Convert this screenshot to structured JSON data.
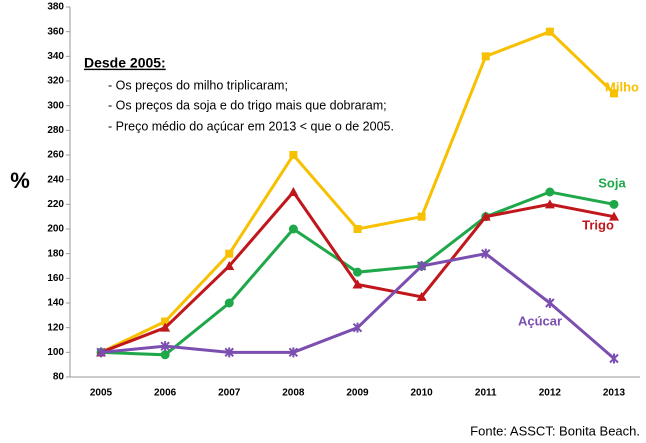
{
  "chart_data": {
    "type": "line",
    "y_label": "%",
    "annotation_title": "Desde 2005:",
    "annotations": [
      "- Os preços do milho triplicaram;",
      "- Os preços da soja e do trigo mais que dobraram;",
      "- Preço médio do açúcar em 2013 < que o de 2005."
    ],
    "source": "Fonte: ASSCT: Bonita Beach.",
    "categories": [
      "2005",
      "2006",
      "2007",
      "2008",
      "2009",
      "2010",
      "2011",
      "2012",
      "2013"
    ],
    "series": [
      {
        "name": "Milho",
        "color": "#f7c000",
        "marker": "square",
        "values": [
          100,
          125,
          180,
          260,
          200,
          210,
          340,
          360,
          310
        ]
      },
      {
        "name": "Soja",
        "color": "#1fa84a",
        "marker": "circle",
        "values": [
          100,
          98,
          140,
          200,
          165,
          170,
          210,
          230,
          220
        ]
      },
      {
        "name": "Trigo",
        "color": "#c0161c",
        "marker": "triangle",
        "values": [
          100,
          120,
          170,
          230,
          155,
          145,
          210,
          220,
          210
        ]
      },
      {
        "name": "Açúcar",
        "color": "#7b4fb0",
        "marker": "star",
        "values": [
          100,
          105,
          100,
          100,
          120,
          170,
          180,
          140,
          95
        ]
      }
    ],
    "ylim": [
      80,
      380
    ],
    "yticks": [
      80,
      100,
      120,
      140,
      160,
      180,
      200,
      220,
      240,
      260,
      280,
      300,
      320,
      340,
      360,
      380
    ],
    "grid": false
  }
}
